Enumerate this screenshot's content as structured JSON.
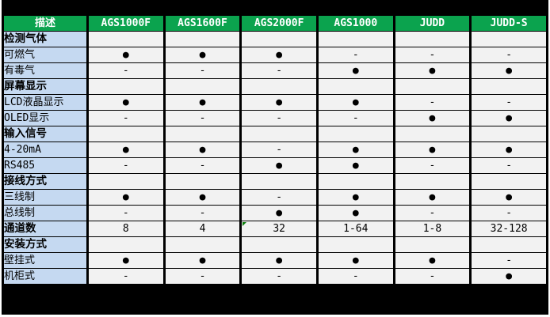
{
  "chart_data": {
    "type": "table",
    "columns": [
      "描述",
      "AGS1000F",
      "AGS1600F",
      "AGS2000F",
      "AGS1000",
      "JUDD",
      "JUDD-S"
    ],
    "rows": [
      {
        "label": "检测气体",
        "bold": true,
        "section": true,
        "cells": [
          "",
          "",
          "",
          "",
          "",
          ""
        ]
      },
      {
        "label": "可燃气",
        "bold": false,
        "section": false,
        "cells": [
          "●",
          "●",
          "●",
          "-",
          "-",
          "-"
        ]
      },
      {
        "label": "有毒气",
        "bold": false,
        "section": false,
        "cells": [
          "-",
          "-",
          "-",
          "●",
          "●",
          "●"
        ]
      },
      {
        "label": "屏幕显示",
        "bold": true,
        "section": true,
        "cells": [
          "",
          "",
          "",
          "",
          "",
          ""
        ]
      },
      {
        "label": "LCD液晶显示",
        "bold": false,
        "section": false,
        "cells": [
          "●",
          "●",
          "●",
          "●",
          "-",
          "-"
        ]
      },
      {
        "label": "OLED显示",
        "bold": false,
        "section": false,
        "cells": [
          "-",
          "-",
          "-",
          "-",
          "●",
          "●"
        ]
      },
      {
        "label": "输入信号",
        "bold": true,
        "section": true,
        "cells": [
          "",
          "",
          "",
          "",
          "",
          ""
        ]
      },
      {
        "label": "4-20mA",
        "bold": false,
        "section": false,
        "cells": [
          "●",
          "●",
          "-",
          "●",
          "●",
          "●"
        ]
      },
      {
        "label": "RS485",
        "bold": false,
        "section": false,
        "cells": [
          "-",
          "-",
          "●",
          "●",
          "-",
          "-"
        ]
      },
      {
        "label": "接线方式",
        "bold": true,
        "section": true,
        "cells": [
          "",
          "",
          "",
          "",
          "",
          ""
        ]
      },
      {
        "label": "三线制",
        "bold": false,
        "section": false,
        "cells": [
          "●",
          "●",
          "-",
          "●",
          "●",
          "●"
        ]
      },
      {
        "label": "总线制",
        "bold": false,
        "section": false,
        "cells": [
          "-",
          "-",
          "●",
          "●",
          "-",
          "-"
        ]
      },
      {
        "label": "通道数",
        "bold": true,
        "section": false,
        "cells": [
          "8",
          "4",
          "32",
          "1-64",
          "1-8",
          "32-128"
        ],
        "flag_col": 2
      },
      {
        "label": "安装方式",
        "bold": true,
        "section": true,
        "cells": [
          "",
          "",
          "",
          "",
          "",
          ""
        ]
      },
      {
        "label": "壁挂式",
        "bold": false,
        "section": false,
        "cells": [
          "●",
          "●",
          "●",
          "●",
          "●",
          "-"
        ]
      },
      {
        "label": "机柜式",
        "bold": false,
        "section": false,
        "cells": [
          "-",
          "-",
          "-",
          "-",
          "-",
          "●"
        ]
      }
    ]
  },
  "markers": {
    "present": "●",
    "absent": "-"
  },
  "colors": {
    "header_bg": "#0BA34E",
    "header_text": "#FFFFFF",
    "row_label_bg": "#C5D9F1",
    "cell_bg": "#F2F2F2",
    "gridline": "#FFFFFF",
    "frame_bg": "#000000",
    "corner_flag": "#0A7D0A"
  }
}
